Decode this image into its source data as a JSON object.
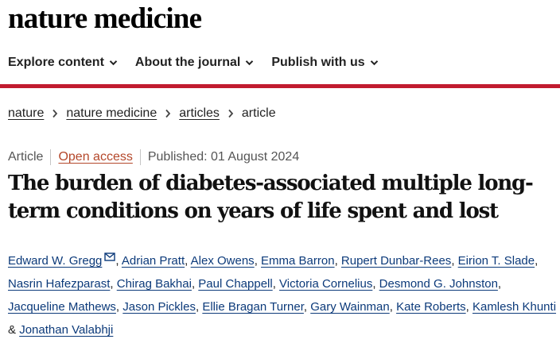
{
  "brand": {
    "logo_text": "nature medicine"
  },
  "nav": {
    "items": [
      {
        "label": "Explore content"
      },
      {
        "label": "About the journal"
      },
      {
        "label": "Publish with us"
      }
    ]
  },
  "breadcrumb": {
    "items": [
      "nature",
      "nature medicine",
      "articles"
    ],
    "current": "article"
  },
  "article": {
    "type": "Article",
    "access": "Open access",
    "published": "Published: 01 August 2024",
    "title": "The burden of diabetes-associated multiple long-term conditions on years of life spent and lost",
    "authors": [
      "Edward W. Gregg",
      "Adrian Pratt",
      "Alex Owens",
      "Emma Barron",
      "Rupert Dunbar-Rees",
      "Eirion T. Slade",
      "Nasrin Hafezparast",
      "Chirag Bakhai",
      "Paul Chappell",
      "Victoria Cornelius",
      "Desmond G. Johnston",
      "Jacqueline Mathews",
      "Jason Pickles",
      "Ellie Bragan Turner",
      "Gary Wainman",
      "Kate Roberts",
      "Kamlesh Khunti",
      "Jonathan Valabhji"
    ],
    "final_separator": "&"
  },
  "colors": {
    "accent_bar": "#c11b2f",
    "open_access": "#b4472a",
    "author_link": "#0c3a7a"
  },
  "icons": [
    "chevron-down-icon",
    "chevron-right-icon",
    "mail-icon"
  ]
}
